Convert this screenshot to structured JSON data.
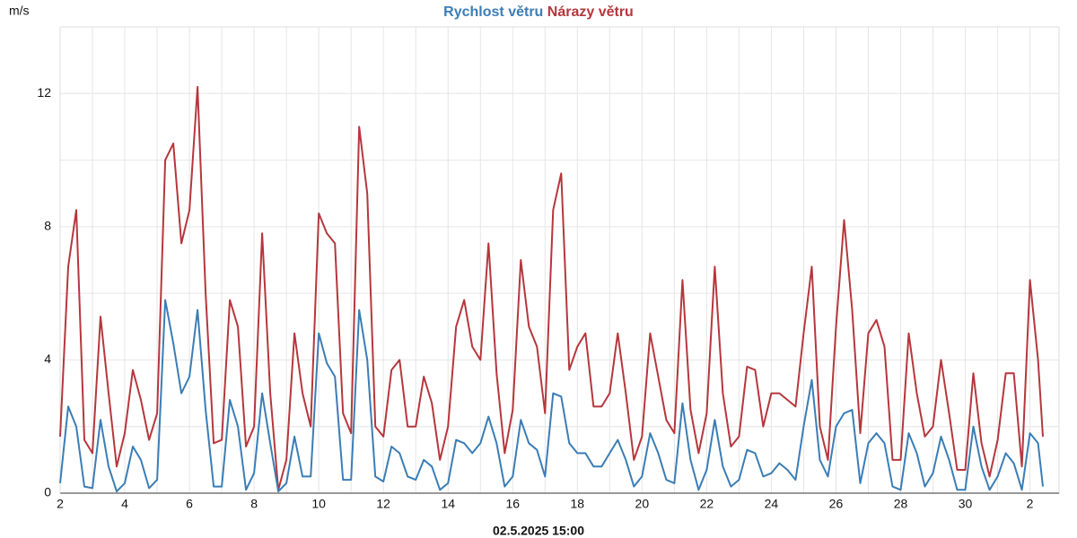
{
  "chart_data": {
    "type": "line",
    "y_unit": "m/s",
    "xlabel": "02.5.2025 15:00",
    "x": [
      2,
      2.25,
      2.5,
      2.75,
      3,
      3.25,
      3.5,
      3.75,
      4,
      4.25,
      4.5,
      4.75,
      5,
      5.25,
      5.5,
      5.75,
      6,
      6.25,
      6.5,
      6.75,
      7,
      7.25,
      7.5,
      7.75,
      8,
      8.25,
      8.5,
      8.75,
      9,
      9.25,
      9.5,
      9.75,
      10,
      10.25,
      10.5,
      10.75,
      11,
      11.25,
      11.5,
      11.75,
      12,
      12.25,
      12.5,
      12.75,
      13,
      13.25,
      13.5,
      13.75,
      14,
      14.25,
      14.5,
      14.75,
      15,
      15.25,
      15.5,
      15.75,
      16,
      16.25,
      16.5,
      16.75,
      17,
      17.25,
      17.5,
      17.75,
      18,
      18.25,
      18.5,
      18.75,
      19,
      19.25,
      19.5,
      19.75,
      20,
      20.25,
      20.5,
      20.75,
      21,
      21.25,
      21.5,
      21.75,
      22,
      22.25,
      22.5,
      22.75,
      23,
      23.25,
      23.5,
      23.75,
      24,
      24.25,
      24.5,
      24.75,
      25,
      25.25,
      25.5,
      25.75,
      26,
      26.25,
      26.5,
      26.75,
      27,
      27.25,
      27.5,
      27.75,
      28,
      28.25,
      28.5,
      28.75,
      29,
      29.25,
      29.5,
      29.75,
      30,
      30.25,
      30.5,
      30.75,
      31,
      31.25,
      31.5,
      31.75,
      32,
      32.25,
      32.4
    ],
    "series": [
      {
        "name": "Rychlost větru",
        "color": "#3b7db5",
        "values": [
          0.3,
          2.6,
          2.0,
          0.2,
          0.15,
          2.2,
          0.8,
          0.05,
          0.3,
          1.4,
          1.0,
          0.15,
          0.4,
          5.8,
          4.5,
          3.0,
          3.5,
          5.5,
          2.5,
          0.2,
          0.2,
          2.8,
          2.0,
          0.1,
          0.6,
          3.0,
          1.5,
          0.05,
          0.3,
          1.7,
          0.5,
          0.5,
          4.8,
          3.9,
          3.5,
          0.4,
          0.4,
          5.5,
          4.0,
          0.5,
          0.35,
          1.4,
          1.2,
          0.5,
          0.4,
          1.0,
          0.8,
          0.1,
          0.3,
          1.6,
          1.5,
          1.2,
          1.5,
          2.3,
          1.5,
          0.2,
          0.5,
          2.2,
          1.5,
          1.3,
          0.5,
          3.0,
          2.9,
          1.5,
          1.2,
          1.2,
          0.8,
          0.8,
          1.2,
          1.6,
          1.0,
          0.2,
          0.5,
          1.8,
          1.2,
          0.4,
          0.3,
          2.7,
          1.0,
          0.1,
          0.7,
          2.2,
          0.8,
          0.2,
          0.4,
          1.3,
          1.2,
          0.5,
          0.6,
          0.9,
          0.7,
          0.4,
          2.0,
          3.4,
          1.0,
          0.5,
          2.0,
          2.4,
          2.5,
          0.3,
          1.5,
          1.8,
          1.5,
          0.2,
          0.1,
          1.8,
          1.2,
          0.2,
          0.6,
          1.7,
          1.0,
          0.1,
          0.1,
          2.0,
          0.8,
          0.1,
          0.5,
          1.2,
          0.9,
          0.1,
          1.8,
          1.5,
          0.2
        ]
      },
      {
        "name": "Nárazy větru",
        "color": "#b5373d",
        "values": [
          1.7,
          6.8,
          8.5,
          1.6,
          1.2,
          5.3,
          3.0,
          0.8,
          1.8,
          3.7,
          2.8,
          1.6,
          2.4,
          10.0,
          10.5,
          7.5,
          8.5,
          12.2,
          6.0,
          1.5,
          1.6,
          5.8,
          5.0,
          1.4,
          2.0,
          7.8,
          3.0,
          0.1,
          1.0,
          4.8,
          3.0,
          2.0,
          8.4,
          7.8,
          7.5,
          2.4,
          1.8,
          11.0,
          9.0,
          2.0,
          1.7,
          3.7,
          4.0,
          2.0,
          2.0,
          3.5,
          2.7,
          1.0,
          2.0,
          5.0,
          5.8,
          4.4,
          4.0,
          7.5,
          3.6,
          1.2,
          2.5,
          7.0,
          5.0,
          4.4,
          2.4,
          8.5,
          9.6,
          3.7,
          4.4,
          4.8,
          2.6,
          2.6,
          3.0,
          4.8,
          3.0,
          1.0,
          1.7,
          4.8,
          3.5,
          2.2,
          1.8,
          6.4,
          2.5,
          1.2,
          2.4,
          6.8,
          3.0,
          1.4,
          1.7,
          3.8,
          3.7,
          2.0,
          3.0,
          3.0,
          2.8,
          2.6,
          4.8,
          6.8,
          2.0,
          1.0,
          5.0,
          8.2,
          5.5,
          1.8,
          4.8,
          5.2,
          4.4,
          1.0,
          1.0,
          4.8,
          3.0,
          1.7,
          2.0,
          4.0,
          2.4,
          0.7,
          0.7,
          3.6,
          1.5,
          0.5,
          1.6,
          3.6,
          3.6,
          0.8,
          6.4,
          4.0,
          1.7
        ]
      }
    ],
    "xlim": [
      2,
      32.9
    ],
    "xticks": [
      2,
      4,
      6,
      8,
      10,
      12,
      14,
      16,
      18,
      20,
      22,
      24,
      26,
      28,
      30,
      {
        "value": 32,
        "label": "2"
      }
    ],
    "minor_xticks": [
      3,
      5,
      7,
      9,
      11,
      13,
      15,
      17,
      19,
      21,
      23,
      25,
      27,
      29,
      31
    ],
    "ylim": [
      0,
      14
    ],
    "yticks": [
      0,
      4,
      8,
      12
    ],
    "minor_yticks": [
      2,
      6,
      10,
      14
    ],
    "grid": true
  }
}
